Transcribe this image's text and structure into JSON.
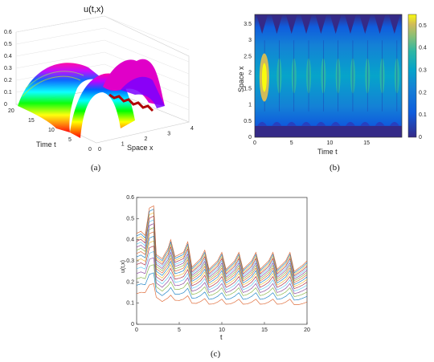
{
  "captions": {
    "a": "(a)",
    "b": "(b)",
    "c": "(c)"
  },
  "chart_data": [
    {
      "type": "surface",
      "title": "u(t,x)",
      "xlabel": "Space x",
      "ylabel": "Time t",
      "x_ticks": [
        "0",
        "1",
        "2",
        "3",
        "4"
      ],
      "t_ticks": [
        "0",
        "5",
        "10",
        "15",
        "20"
      ],
      "z_ticks": [
        "0",
        "0.1",
        "0.2",
        "0.3",
        "0.4",
        "0.5",
        "0.6"
      ],
      "xlim": [
        0,
        4
      ],
      "tlim": [
        0,
        20
      ],
      "zlim": [
        0,
        0.6
      ],
      "colormap": "hsv",
      "grid": true
    },
    {
      "type": "heatmap",
      "xlabel": "Time t",
      "ylabel": "Space x",
      "x_ticks": [
        "0",
        "5",
        "10",
        "15"
      ],
      "y_ticks": [
        "0",
        "0.5",
        "1",
        "1.5",
        "2",
        "2.5",
        "3",
        "3.5"
      ],
      "colorbar_ticks": [
        "0",
        "0.1",
        "0.2",
        "0.3",
        "0.4",
        "0.5"
      ],
      "xlim": [
        0,
        20
      ],
      "ylim": [
        0,
        3.8
      ],
      "clim": [
        0,
        0.55
      ],
      "colormap": "parula"
    },
    {
      "type": "line",
      "xlabel": "t",
      "ylabel": "u(t,x)",
      "x_ticks": [
        "0",
        "5",
        "10",
        "15",
        "20"
      ],
      "y_ticks": [
        "0",
        "0.1",
        "0.2",
        "0.3",
        "0.4",
        "0.5",
        "0.6"
      ],
      "xlim": [
        0,
        20
      ],
      "ylim": [
        0,
        0.6
      ],
      "series_count": 16,
      "upper_envelope": {
        "t": [
          0,
          0.5,
          1,
          1.5,
          2,
          2.3,
          3,
          3.7,
          4,
          4.5,
          5.5,
          6,
          6.5,
          7.5,
          8,
          8.5,
          9.5,
          10,
          10.5,
          11.5,
          12,
          12.5,
          13.5,
          14,
          14.5,
          15.5,
          16,
          16.5,
          17.5,
          18,
          18.5,
          19.5,
          20
        ],
        "u": [
          0.43,
          0.44,
          0.42,
          0.55,
          0.56,
          0.33,
          0.31,
          0.36,
          0.4,
          0.32,
          0.34,
          0.39,
          0.27,
          0.31,
          0.35,
          0.26,
          0.3,
          0.34,
          0.26,
          0.3,
          0.34,
          0.26,
          0.3,
          0.34,
          0.26,
          0.3,
          0.34,
          0.26,
          0.3,
          0.34,
          0.25,
          0.28,
          0.3
        ]
      },
      "lowest_series": {
        "t": [
          0,
          1,
          2,
          3,
          4,
          5,
          6,
          7,
          8,
          9,
          10,
          11,
          12,
          13,
          14,
          15,
          16,
          17,
          18,
          19,
          20
        ],
        "u": [
          0.05,
          0.06,
          0.07,
          0.04,
          0.05,
          0.04,
          0.05,
          0.035,
          0.045,
          0.035,
          0.045,
          0.035,
          0.045,
          0.035,
          0.045,
          0.035,
          0.045,
          0.035,
          0.045,
          0.035,
          0.04
        ]
      }
    }
  ]
}
